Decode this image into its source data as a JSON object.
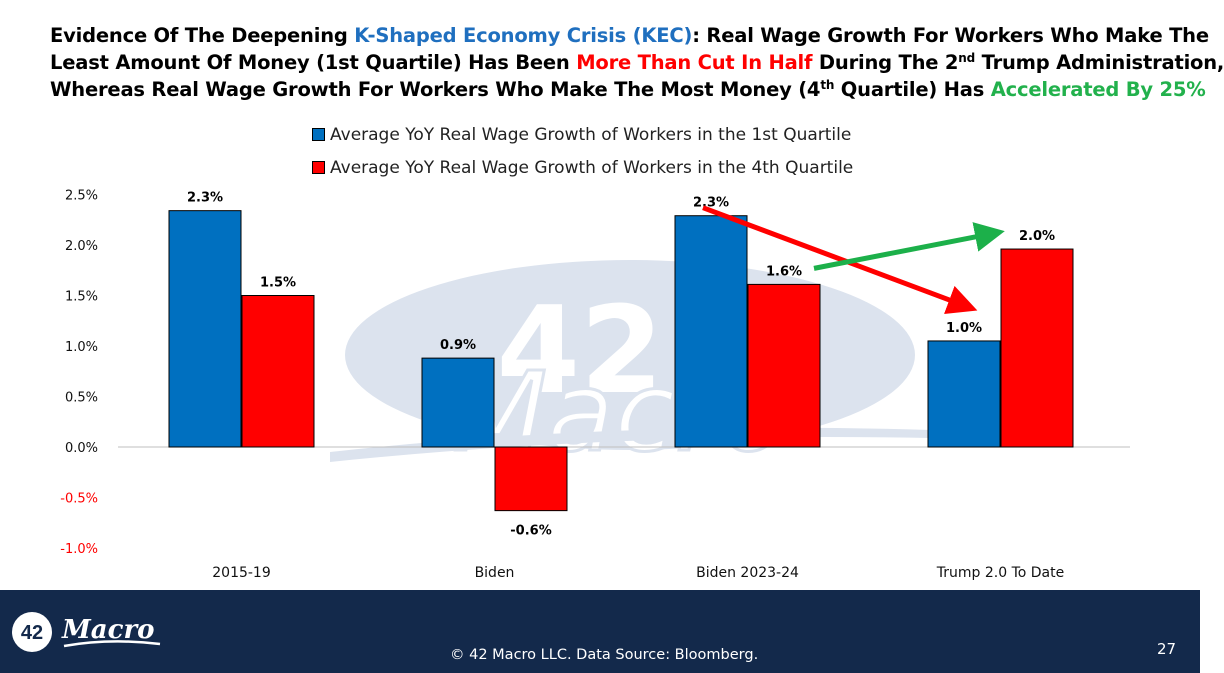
{
  "title": {
    "line1": {
      "a": "Evidence Of The Deepening ",
      "b": "K-Shaped Economy Crisis (KEC)",
      "c": ": Real Wage Growth For Workers Who Make The"
    },
    "line2": {
      "a": "Least Amount Of Money (1st Quartile) Has Been ",
      "b": "More Than Cut In Half",
      "c": " During The 2",
      "sup": "nd",
      "d": " Trump Administration,"
    },
    "line3": {
      "a": "Whereas Real Wage Growth For Workers Who Make The Most Money (4",
      "sup": "th",
      "b": " Quartile) Has ",
      "c": "Accelerated By 25%"
    }
  },
  "colors": {
    "blue_series": "#0070c0",
    "red_series": "#ff0000",
    "negative_tick": "#ff0000",
    "title_blue": "#1f6fbf",
    "title_red": "#ff0000",
    "title_green": "#22b14c",
    "arrow_red": "#ff0000",
    "arrow_green": "#1cb04a",
    "footer_bg": "#13294b",
    "watermark": "#dce3ee"
  },
  "watermark": {
    "number": "42",
    "word": "Macro"
  },
  "chart_data": {
    "type": "bar",
    "categories": [
      "2015-19",
      "Biden",
      "Biden 2023-24",
      "Trump 2.0 To Date"
    ],
    "series": [
      {
        "name": "Average YoY Real Wage Growth of Workers in the 1st Quartile",
        "values": [
          2.34,
          0.88,
          2.29,
          1.05
        ],
        "labels": [
          "2.3%",
          "0.9%",
          "2.3%",
          "1.0%"
        ],
        "color": "#0070c0"
      },
      {
        "name": "Average YoY Real Wage Growth of Workers in the 4th Quartile",
        "values": [
          1.5,
          -0.63,
          1.61,
          1.96
        ],
        "labels": [
          "1.5%",
          "-0.6%",
          "1.6%",
          "2.0%"
        ],
        "color": "#ff0000"
      }
    ],
    "yticks": [
      {
        "value": 2.5,
        "label": "2.5%"
      },
      {
        "value": 2.0,
        "label": "2.0%"
      },
      {
        "value": 1.5,
        "label": "1.5%"
      },
      {
        "value": 1.0,
        "label": "1.0%"
      },
      {
        "value": 0.5,
        "label": "0.5%"
      },
      {
        "value": 0.0,
        "label": "0.0%"
      },
      {
        "value": -0.5,
        "label": "-0.5%"
      },
      {
        "value": -1.0,
        "label": "-1.0%"
      }
    ],
    "ylim": [
      -1.0,
      2.5
    ],
    "grid": false,
    "legend_position": "top",
    "annotations": [
      {
        "type": "arrow",
        "from": "Biden 2023-24 / 1st Quartile",
        "to": "Trump 2.0 To Date / 1st Quartile",
        "color": "red"
      },
      {
        "type": "arrow",
        "from": "Biden 2023-24 / 4th Quartile",
        "to": "Trump 2.0 To Date / 4th Quartile",
        "color": "green"
      }
    ]
  },
  "footer": {
    "logo_number": "42",
    "logo_word": "Macro",
    "text": "© 42 Macro LLC. Data Source: Bloomberg.",
    "page_number": "27"
  }
}
